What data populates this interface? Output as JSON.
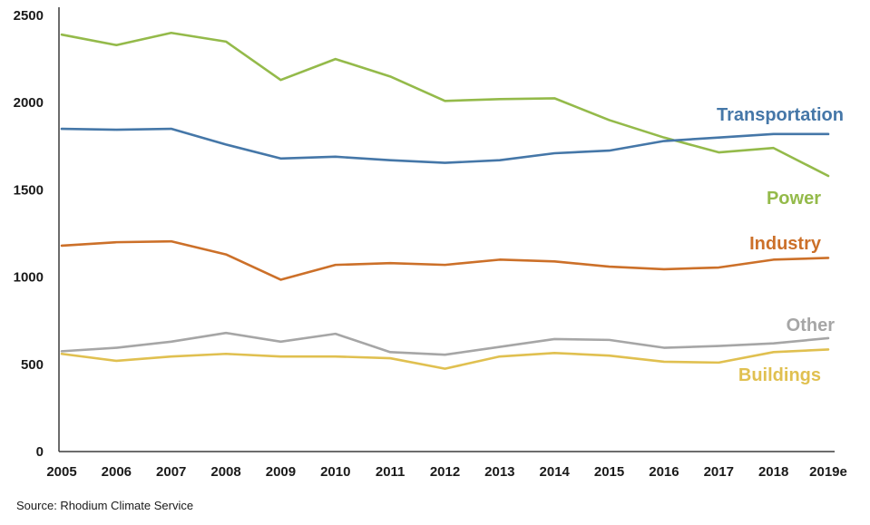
{
  "source": "Source: Rhodium Climate Service",
  "chart_data": {
    "type": "line",
    "title": "",
    "xlabel": "",
    "ylabel": "",
    "grid": false,
    "legend_position": "inline-right-labels",
    "axis_color": "#3c3c3c",
    "text_color": "#1a1a1a",
    "ylim": [
      0,
      2500
    ],
    "yticks": [
      0,
      500,
      1000,
      1500,
      2000,
      2500
    ],
    "categories": [
      "2005",
      "2006",
      "2007",
      "2008",
      "2009",
      "2010",
      "2011",
      "2012",
      "2013",
      "2014",
      "2015",
      "2016",
      "2017",
      "2018",
      "2019e"
    ],
    "series": [
      {
        "name": "Power",
        "color": "#94ba4a",
        "values": [
          2390,
          2330,
          2400,
          2350,
          2130,
          2250,
          2150,
          2010,
          2020,
          2025,
          1900,
          1800,
          1715,
          1740,
          1580
        ],
        "label": {
          "x": 905,
          "y": 225,
          "anchor": "end"
        }
      },
      {
        "name": "Transportation",
        "color": "#4577a8",
        "values": [
          1850,
          1845,
          1850,
          1760,
          1680,
          1690,
          1670,
          1655,
          1670,
          1710,
          1725,
          1780,
          1800,
          1820,
          1820
        ],
        "label": {
          "x": 930,
          "y": 133,
          "anchor": "end"
        }
      },
      {
        "name": "Industry",
        "color": "#cc7029",
        "values": [
          1180,
          1200,
          1205,
          1130,
          985,
          1070,
          1080,
          1070,
          1100,
          1090,
          1060,
          1045,
          1055,
          1100,
          1110
        ],
        "label": {
          "x": 905,
          "y": 275,
          "anchor": "end"
        }
      },
      {
        "name": "Buildings",
        "color": "#e0c050",
        "values": [
          560,
          520,
          545,
          560,
          545,
          545,
          535,
          475,
          545,
          565,
          550,
          515,
          510,
          570,
          585
        ],
        "label": {
          "x": 905,
          "y": 420,
          "anchor": "end"
        }
      },
      {
        "name": "Other",
        "color": "#a6a6a6",
        "values": [
          575,
          595,
          630,
          680,
          630,
          675,
          570,
          555,
          600,
          645,
          640,
          595,
          605,
          620,
          650
        ],
        "label": {
          "x": 920,
          "y": 365,
          "anchor": "end"
        }
      }
    ]
  }
}
